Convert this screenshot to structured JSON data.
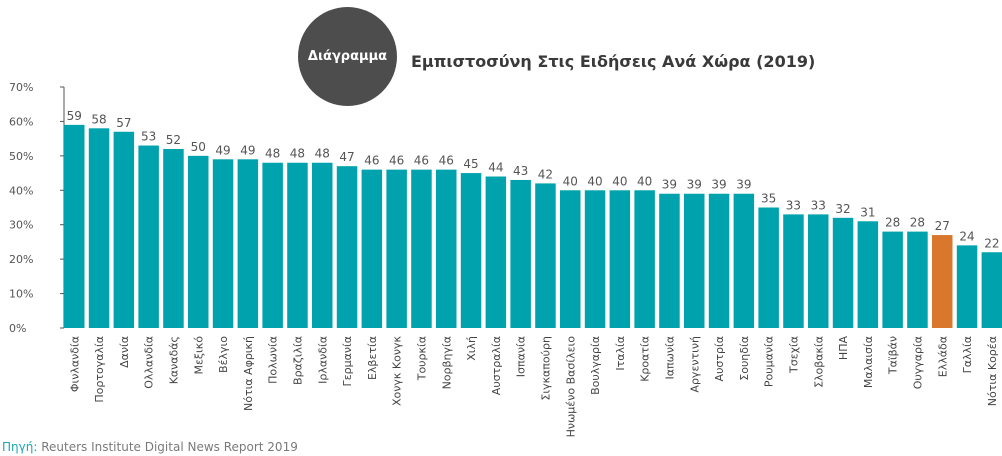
{
  "header": {
    "badge_label": "Διάγραμμα",
    "title": "Εμπιστοσύνη Στις Ειδήσεις Ανά Χώρα (2019)"
  },
  "source": {
    "label": "Πηγή:",
    "text": " Reuters Institute Digital News Report 2019"
  },
  "colors": {
    "bar": "#00a3ad",
    "highlight": "#d9782c",
    "badge": "#4d4d4d",
    "source_label": "#1aa6b3"
  },
  "chart_data": {
    "type": "bar",
    "title": "Εμπιστοσύνη Στις Ειδήσεις Ανά Χώρα (2019)",
    "xlabel": "",
    "ylabel": "",
    "ylim": [
      0,
      70
    ],
    "y_ticks": [
      "0%",
      "10%",
      "20%",
      "30%",
      "40%",
      "50%",
      "60%",
      "70%"
    ],
    "grid": false,
    "highlighted_category": "Ελλάδα",
    "categories": [
      "Φινλανδία",
      "Πορτογαλία",
      "Δανία",
      "Ολλανδία",
      "Καναδάς",
      "Μεξικό",
      "Βέλγιο",
      "Νότια Αφρική",
      "Πολωνία",
      "Βραζιλία",
      "Ιρλανδία",
      "Γερμανία",
      "Ελβετία",
      "Χονγκ Κονγκ",
      "Τουρκία",
      "Νορβηγία",
      "Χιλή",
      "Αυστραλία",
      "Ισπανία",
      "Σιγκαπούρη",
      "Ηνωμένο Βασίλειο",
      "Βουλγαρία",
      "Ιταλία",
      "Κροατία",
      "Ιαπωνία",
      "Αργεντινή",
      "Αυστρία",
      "Σουηδία",
      "Ρουμανία",
      "Τσεχία",
      "Σλοβακία",
      "ΗΠΑ",
      "Μαλαισία",
      "Ταϊβάν",
      "Ουγγαρία",
      "Ελλάδα",
      "Γαλλία",
      "Νότια Κορέα"
    ],
    "values": [
      59,
      58,
      57,
      53,
      52,
      50,
      49,
      49,
      48,
      48,
      48,
      47,
      46,
      46,
      46,
      46,
      45,
      44,
      43,
      42,
      40,
      40,
      40,
      40,
      39,
      39,
      39,
      39,
      35,
      33,
      33,
      32,
      31,
      28,
      28,
      27,
      24,
      22
    ]
  }
}
